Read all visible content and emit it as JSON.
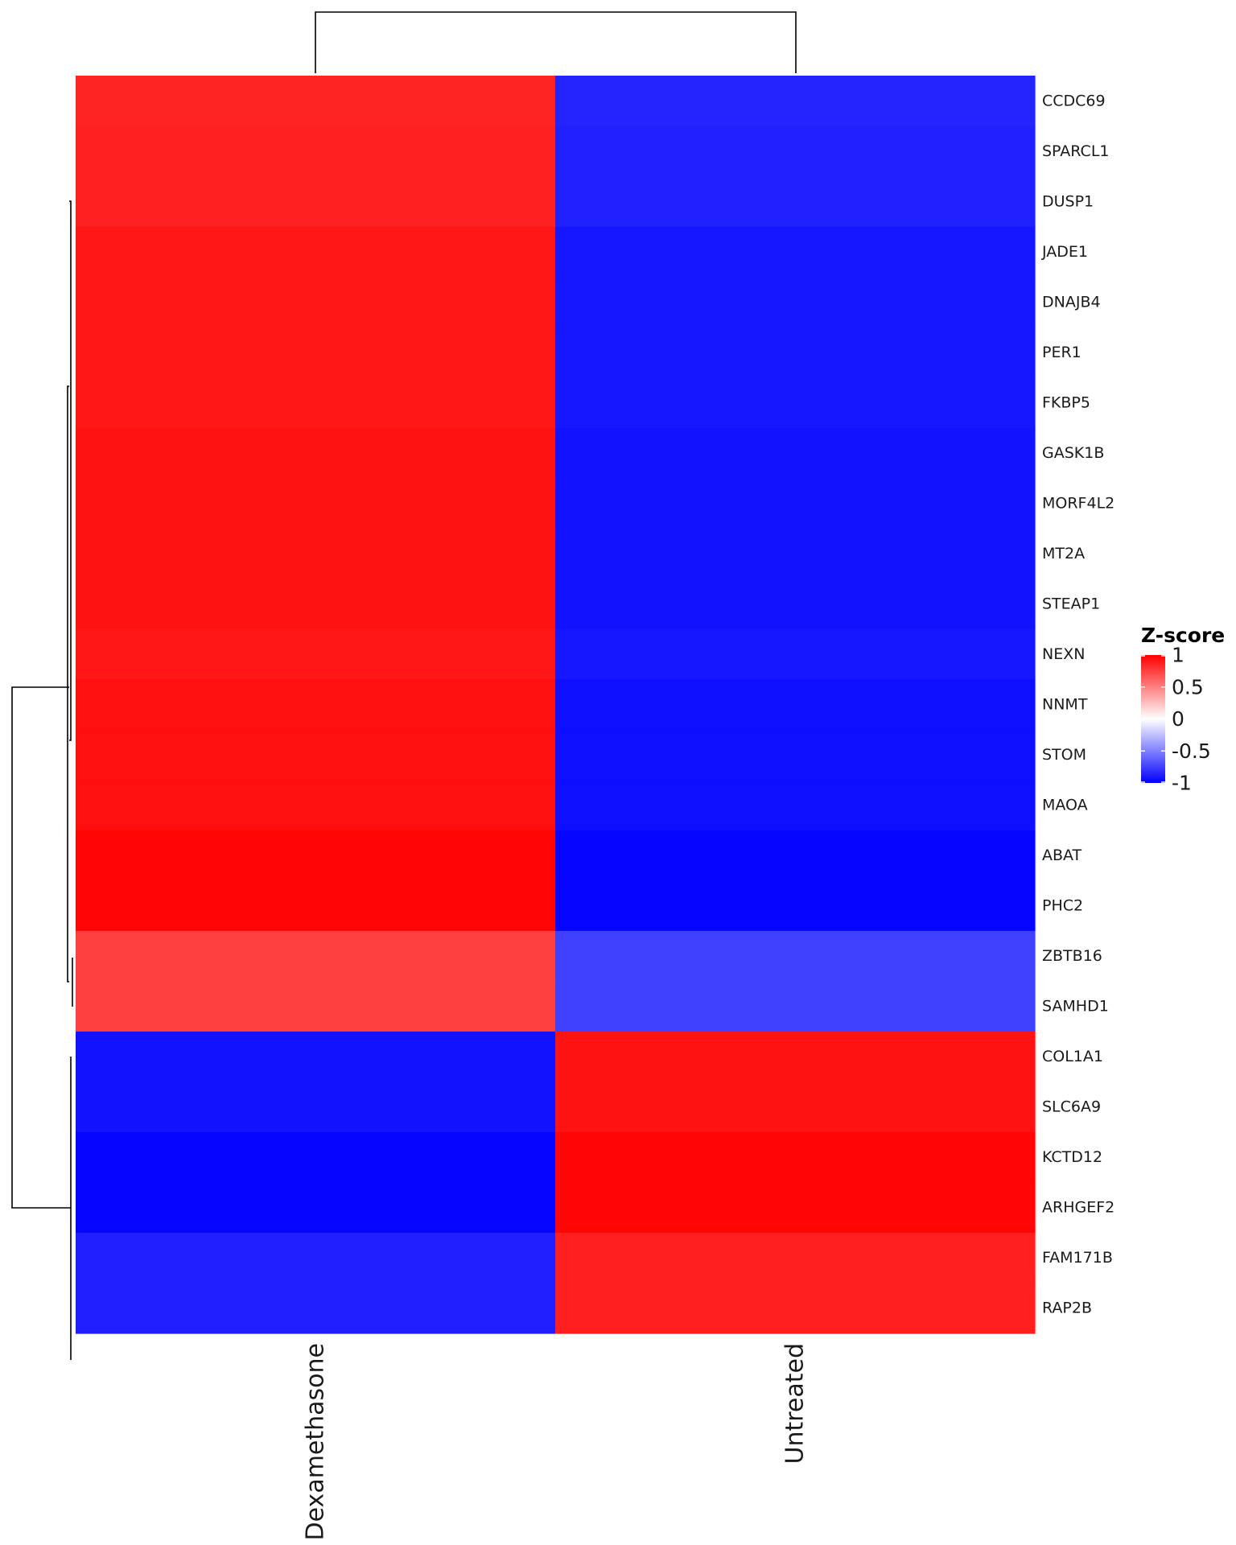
{
  "chart_data": {
    "type": "heatmap",
    "columns": [
      "Dexamethasone",
      "Untreated"
    ],
    "rows": [
      "CCDC69",
      "SPARCL1",
      "DUSP1",
      "JADE1",
      "DNAJB4",
      "PER1",
      "FKBP5",
      "GASK1B",
      "MORF4L2",
      "MT2A",
      "STEAP1",
      "NEXN",
      "NNMT",
      "STOM",
      "MAOA",
      "ABAT",
      "PHC2",
      "ZBTB16",
      "SAMHD1",
      "COL1A1",
      "SLC6A9",
      "KCTD12",
      "ARHGEF2",
      "FAM171B",
      "RAP2B"
    ],
    "values": [
      [
        0.86,
        -0.86
      ],
      [
        0.87,
        -0.87
      ],
      [
        0.87,
        -0.87
      ],
      [
        0.91,
        -0.91
      ],
      [
        0.91,
        -0.91
      ],
      [
        0.91,
        -0.91
      ],
      [
        0.91,
        -0.91
      ],
      [
        0.93,
        -0.93
      ],
      [
        0.93,
        -0.93
      ],
      [
        0.93,
        -0.93
      ],
      [
        0.93,
        -0.93
      ],
      [
        0.91,
        -0.91
      ],
      [
        0.94,
        -0.94
      ],
      [
        0.94,
        -0.94
      ],
      [
        0.94,
        -0.94
      ],
      [
        0.98,
        -0.98
      ],
      [
        0.98,
        -0.98
      ],
      [
        0.75,
        -0.75
      ],
      [
        0.75,
        -0.75
      ],
      [
        -0.93,
        0.93
      ],
      [
        -0.93,
        0.93
      ],
      [
        -0.98,
        0.98
      ],
      [
        -0.98,
        0.98
      ],
      [
        -0.88,
        0.88
      ],
      [
        -0.88,
        0.88
      ]
    ],
    "color_scale": {
      "low": "#0000ff",
      "mid": "#ffffff",
      "high": "#ff0000",
      "min": -1,
      "max": 1
    },
    "legend": {
      "title": "Z-score",
      "ticks": [
        1,
        0.5,
        0,
        -0.5,
        -1
      ],
      "tick_labels": [
        "1",
        "0.5",
        "0",
        "-0.5",
        "-1"
      ],
      "position": "right"
    },
    "column_dendrogram": true,
    "row_dendrogram": true
  }
}
